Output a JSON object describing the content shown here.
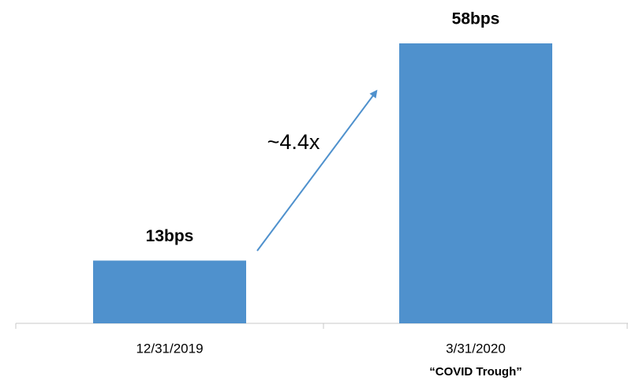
{
  "chart_data": {
    "type": "bar",
    "categories": [
      "12/31/2019",
      "3/31/2020"
    ],
    "category_notes": [
      null,
      "“COVID Trough”"
    ],
    "values": [
      13,
      58
    ],
    "value_labels": [
      "13bps",
      "58bps"
    ],
    "color": "#4f91cd",
    "annotations": [
      "~4.4x"
    ]
  }
}
